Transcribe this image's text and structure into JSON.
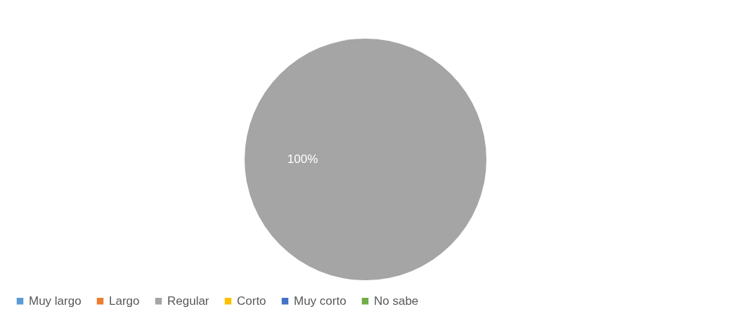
{
  "chart_data": {
    "type": "pie",
    "categories": [
      "Muy largo",
      "Largo",
      "Regular",
      "Corto",
      "Muy corto",
      "No sabe"
    ],
    "values": [
      0,
      0,
      100,
      0,
      0,
      0
    ],
    "colors": [
      "#5b9bd5",
      "#ed7d31",
      "#a5a5a5",
      "#ffc000",
      "#4472c4",
      "#70ad47"
    ],
    "value_labels": [
      null,
      null,
      "100%",
      null,
      null,
      null
    ],
    "legend": "bottom"
  }
}
